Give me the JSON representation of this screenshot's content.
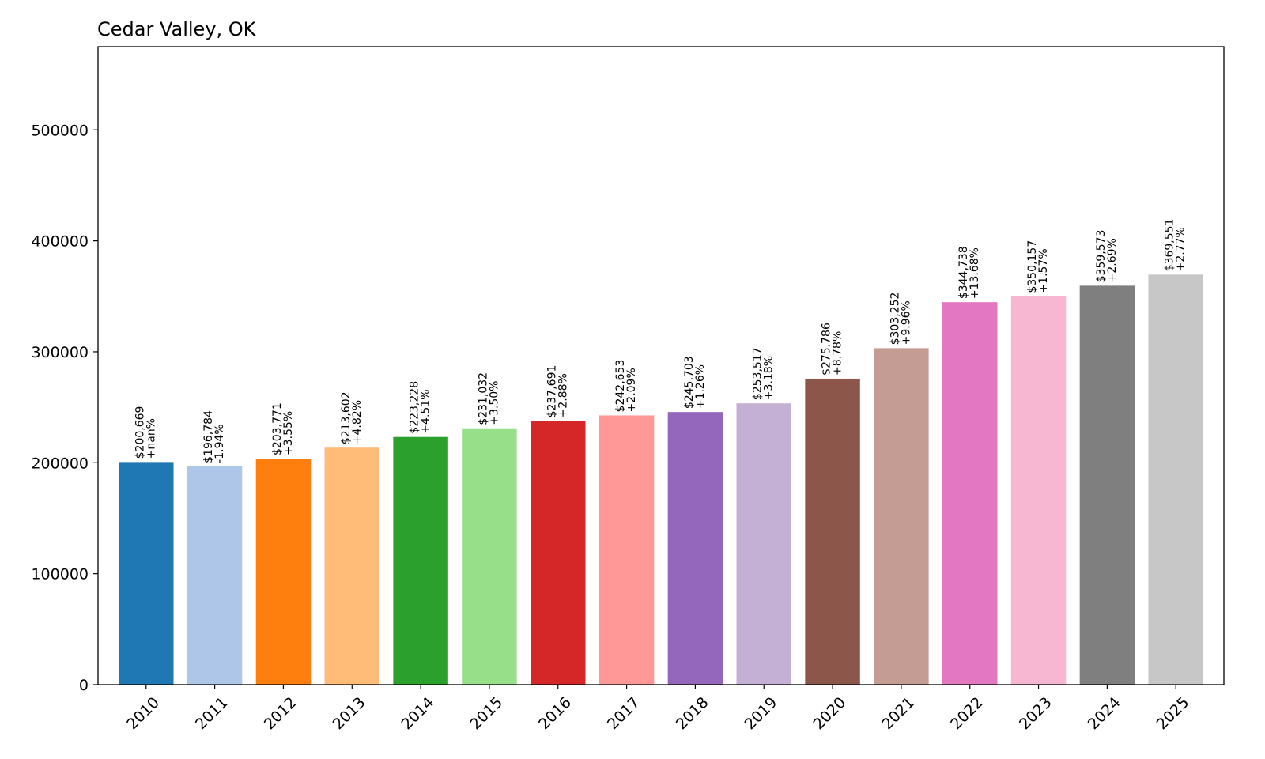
{
  "chart_data": {
    "type": "bar",
    "title": "Cedar Valley, OK",
    "xlabel": "",
    "ylabel": "",
    "categories": [
      "2010",
      "2011",
      "2012",
      "2013",
      "2014",
      "2015",
      "2016",
      "2017",
      "2018",
      "2019",
      "2020",
      "2021",
      "2022",
      "2023",
      "2024",
      "2025"
    ],
    "values": [
      200669,
      196784,
      203771,
      213602,
      223228,
      231032,
      237691,
      242653,
      245703,
      253517,
      275786,
      303252,
      344738,
      350157,
      359573,
      369551
    ],
    "value_labels": [
      "$200,669",
      "$196,784",
      "$203,771",
      "$213,602",
      "$223,228",
      "$231,032",
      "$237,691",
      "$242,653",
      "$245,703",
      "$253,517",
      "$275,786",
      "$303,252",
      "$344,738",
      "$350,157",
      "$359,573",
      "$369,551"
    ],
    "change_labels": [
      "+nan%",
      "-1.94%",
      "+3.55%",
      "+4.82%",
      "+4.51%",
      "+3.50%",
      "+2.88%",
      "+2.09%",
      "+1.26%",
      "+3.18%",
      "+8.78%",
      "+9.96%",
      "+13.68%",
      "+1.57%",
      "+2.69%",
      "+2.77%"
    ],
    "colors": [
      "#1f77b4",
      "#aec7e8",
      "#ff7f0e",
      "#ffbb78",
      "#2ca02c",
      "#98df8a",
      "#d62728",
      "#ff9896",
      "#9467bd",
      "#c5b0d5",
      "#8c564b",
      "#c49c94",
      "#e377c2",
      "#f7b6d2",
      "#7f7f7f",
      "#c7c7c7"
    ],
    "yticks": [
      0,
      100000,
      200000,
      300000,
      400000,
      500000
    ],
    "ytick_labels": [
      "0",
      "100000",
      "200000",
      "300000",
      "400000",
      "500000"
    ],
    "ylim": [
      0,
      575000
    ],
    "grid": false,
    "legend": "none"
  }
}
